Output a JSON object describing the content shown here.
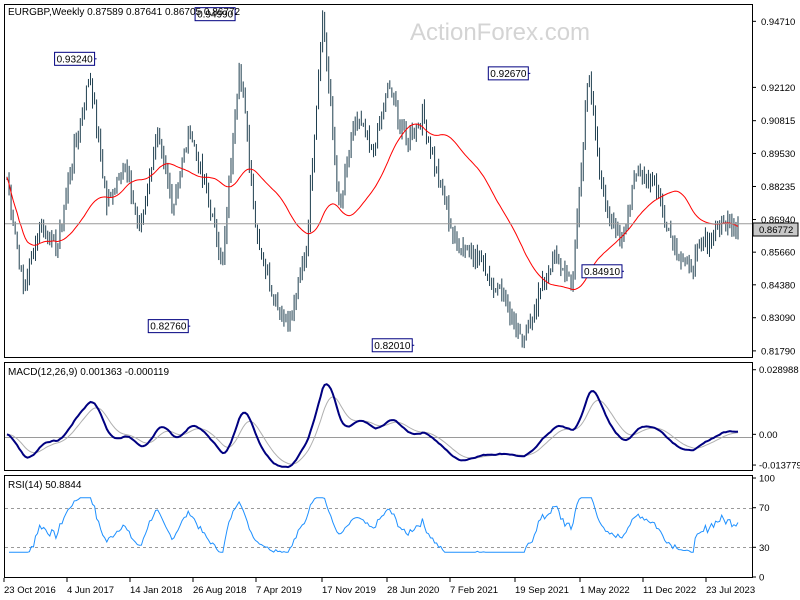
{
  "watermark": "ActionForex.com",
  "price_panel": {
    "title": "EURGBP,Weekly  0.87589 0.87641 0.86705 0.86772",
    "y_ticks": [
      "0.94710",
      "0.92120",
      "0.89530",
      "0.86940",
      "0.84380",
      "0.81790"
    ],
    "y_ticks_hidden_by_current": [
      "0.90815",
      "0.88235",
      "0.85660",
      "0.83090"
    ],
    "current_price": "0.86772",
    "peak_labels": [
      {
        "text": "0.93240",
        "value": 0.9324,
        "week": 44
      },
      {
        "text": "0.94990",
        "value": 0.9499,
        "week": 113
      },
      {
        "text": "0.92670",
        "value": 0.9267,
        "week": 257
      },
      {
        "text": "0.82760",
        "value": 0.8276,
        "week": 90
      },
      {
        "text": "0.82010",
        "value": 0.8201,
        "week": 200
      },
      {
        "text": "0.84910",
        "value": 0.8491,
        "week": 303
      }
    ]
  },
  "macd_panel": {
    "title": "MACD(12,26,9) 0.001363 -0.000119",
    "y_ticks": [
      "0.028988",
      "0.00",
      "-0.013779"
    ]
  },
  "rsi_panel": {
    "title": "RSI(14) 50.8844",
    "y_ticks": [
      "100",
      "70",
      "30",
      "0"
    ]
  },
  "x_labels": [
    "23 Oct 2016",
    "4 Jun 2017",
    "14 Jan 2018",
    "26 Aug 2018",
    "7 Apr 2019",
    "17 Nov 2019",
    "28 Jun 2020",
    "7 Feb 2021",
    "19 Sep 2021",
    "1 May 2022",
    "11 Dec 2022",
    "23 Jul 2023"
  ],
  "colors": {
    "bars": "#1f3f4f",
    "moving_average": "#ff0000",
    "macd_line": "#000080",
    "macd_signal": "#b0b0b0",
    "rsi_line": "#1e90ff",
    "label_box": "#000080"
  },
  "chart_data": {
    "type": "ohlc",
    "title": "EURGBP,Weekly",
    "ohlc_last": {
      "open": 0.87589,
      "high": 0.87641,
      "low": 0.86705,
      "close": 0.86772
    },
    "ylim": [
      0.8179,
      0.9471
    ],
    "x_range": [
      "23 Oct 2016",
      "23 Jul 2023"
    ],
    "price_anchors": [
      {
        "date": "23 Oct 2016",
        "value": 0.886
      },
      {
        "date": "2017",
        "value": 0.842
      },
      {
        "date": "2017",
        "value": 0.868
      },
      {
        "date": "2017",
        "value": 0.858
      },
      {
        "date": "2017",
        "value": 0.895
      },
      {
        "date": "Aug 2017",
        "value": 0.927
      },
      {
        "date": "2017",
        "value": 0.875
      },
      {
        "date": "2018",
        "value": 0.892
      },
      {
        "date": "2018",
        "value": 0.865
      },
      {
        "date": "2018",
        "value": 0.902
      },
      {
        "date": "2018",
        "value": 0.875
      },
      {
        "date": "2018",
        "value": 0.905
      },
      {
        "date": "2018",
        "value": 0.88
      },
      {
        "date": "2019",
        "value": 0.853
      },
      {
        "date": "Aug 2019",
        "value": 0.9324
      },
      {
        "date": "2019",
        "value": 0.865
      },
      {
        "date": "2019",
        "value": 0.84
      },
      {
        "date": "Dec 2019",
        "value": 0.8276
      },
      {
        "date": "2020",
        "value": 0.858
      },
      {
        "date": "Mar 2020",
        "value": 0.9499
      },
      {
        "date": "2020",
        "value": 0.872
      },
      {
        "date": "2020",
        "value": 0.91
      },
      {
        "date": "2020",
        "value": 0.895
      },
      {
        "date": "2020",
        "value": 0.922
      },
      {
        "date": "2020",
        "value": 0.9
      },
      {
        "date": "2020",
        "value": 0.91
      },
      {
        "date": "2021",
        "value": 0.885
      },
      {
        "date": "2021",
        "value": 0.86
      },
      {
        "date": "2021",
        "value": 0.858
      },
      {
        "date": "2021",
        "value": 0.848
      },
      {
        "date": "2021",
        "value": 0.838
      },
      {
        "date": "Mar 2022",
        "value": 0.8201
      },
      {
        "date": "2022",
        "value": 0.84
      },
      {
        "date": "2022",
        "value": 0.855
      },
      {
        "date": "2022",
        "value": 0.843
      },
      {
        "date": "Sep 2022",
        "value": 0.9267
      },
      {
        "date": "2022",
        "value": 0.872
      },
      {
        "date": "2022",
        "value": 0.862
      },
      {
        "date": "2023",
        "value": 0.89
      },
      {
        "date": "2023",
        "value": 0.883
      },
      {
        "date": "2023",
        "value": 0.862
      },
      {
        "date": "Aug 2023",
        "value": 0.8491
      },
      {
        "date": "2023",
        "value": 0.86
      },
      {
        "date": "2023",
        "value": 0.868
      },
      {
        "date": "23 Jul 2023",
        "value": 0.8677
      }
    ],
    "indicators": {
      "moving_average": "red line",
      "macd": {
        "params": "12,26,9",
        "macd": 0.001363,
        "signal": -0.000119,
        "ylim": [
          -0.013779,
          0.028988
        ]
      },
      "rsi": {
        "period": 14,
        "value": 50.8844,
        "levels": [
          70,
          30
        ],
        "ylim": [
          0,
          100
        ]
      }
    }
  }
}
